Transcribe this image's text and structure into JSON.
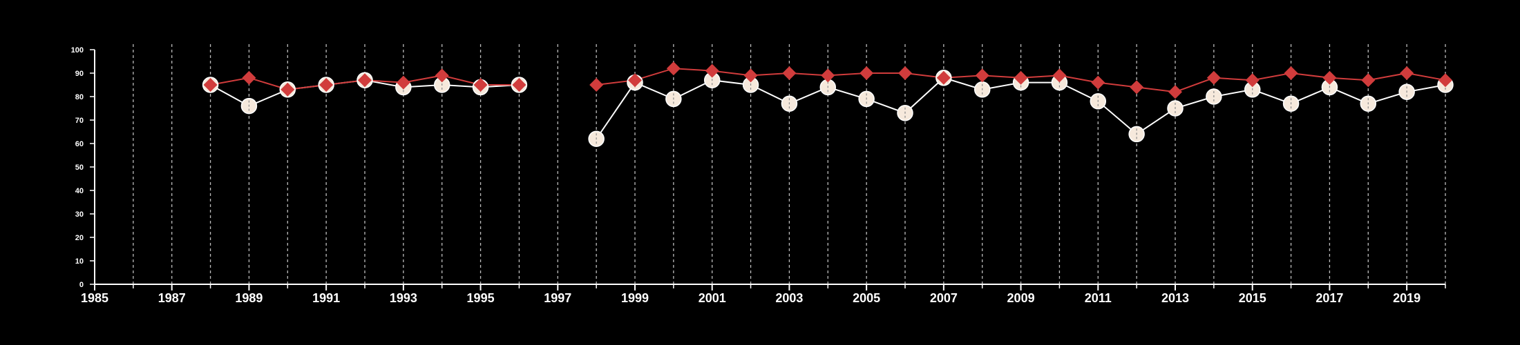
{
  "colors": {
    "background": "#000000",
    "axis": "#ffffff",
    "grid": "#bdbdbd",
    "series_a_line": "#ffffff",
    "series_a_marker": "#f6e9dc",
    "series_b": "#d13c3c"
  },
  "chart_data": {
    "type": "line",
    "title": "",
    "xlabel": "",
    "ylabel": "",
    "xlim": [
      1985,
      2020
    ],
    "ylim": [
      0,
      100
    ],
    "x_ticks": [
      "1985",
      "1987",
      "1989",
      "1991",
      "1993",
      "1995",
      "1997",
      "1999",
      "2001",
      "2003",
      "2005",
      "2007",
      "2009",
      "2011",
      "2013",
      "2015",
      "2017",
      "2019"
    ],
    "y_ticks": [
      "0",
      "10",
      "20",
      "30",
      "40",
      "50",
      "60",
      "70",
      "80",
      "90",
      "100"
    ],
    "grid": "vertical dashed lines at every year",
    "legend": "none",
    "series": [
      {
        "marker": "circle",
        "points": [
          [
            1988,
            85
          ],
          [
            1989,
            76
          ],
          [
            1990,
            83
          ],
          [
            1991,
            85
          ],
          [
            1992,
            87
          ],
          [
            1993,
            84
          ],
          [
            1994,
            85
          ],
          [
            1995,
            84
          ],
          [
            1996,
            85
          ],
          [
            1998,
            62
          ],
          [
            1999,
            86
          ],
          [
            2000,
            79
          ],
          [
            2001,
            87
          ],
          [
            2002,
            85
          ],
          [
            2003,
            77
          ],
          [
            2004,
            84
          ],
          [
            2005,
            79
          ],
          [
            2006,
            73
          ],
          [
            2007,
            88
          ],
          [
            2008,
            83
          ],
          [
            2009,
            86
          ],
          [
            2010,
            86
          ],
          [
            2011,
            78
          ],
          [
            2012,
            64
          ],
          [
            2013,
            75
          ],
          [
            2014,
            80
          ],
          [
            2015,
            83
          ],
          [
            2016,
            77
          ],
          [
            2017,
            84
          ],
          [
            2018,
            77
          ],
          [
            2019,
            82
          ],
          [
            2020,
            85
          ]
        ]
      },
      {
        "marker": "diamond",
        "points": [
          [
            1988,
            85
          ],
          [
            1989,
            88
          ],
          [
            1990,
            83
          ],
          [
            1991,
            85
          ],
          [
            1992,
            87
          ],
          [
            1993,
            86
          ],
          [
            1994,
            89
          ],
          [
            1995,
            85
          ],
          [
            1996,
            85
          ],
          [
            1998,
            85
          ],
          [
            1999,
            87
          ],
          [
            2000,
            92
          ],
          [
            2001,
            91
          ],
          [
            2002,
            89
          ],
          [
            2003,
            90
          ],
          [
            2004,
            89
          ],
          [
            2005,
            90
          ],
          [
            2006,
            90
          ],
          [
            2007,
            88
          ],
          [
            2008,
            89
          ],
          [
            2009,
            88
          ],
          [
            2010,
            89
          ],
          [
            2011,
            86
          ],
          [
            2012,
            84
          ],
          [
            2013,
            82
          ],
          [
            2014,
            88
          ],
          [
            2015,
            87
          ],
          [
            2016,
            90
          ],
          [
            2017,
            88
          ],
          [
            2018,
            87
          ],
          [
            2019,
            90
          ],
          [
            2020,
            87
          ]
        ]
      }
    ]
  }
}
